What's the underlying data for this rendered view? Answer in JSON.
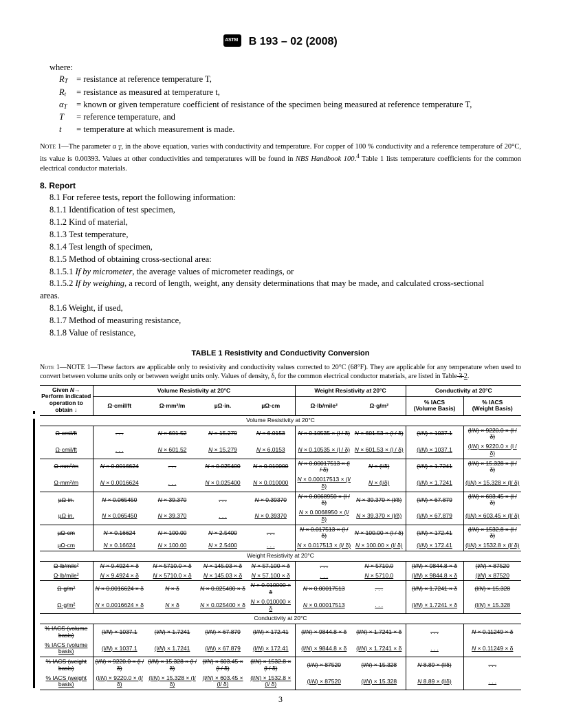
{
  "header": {
    "designation": "B 193 – 02 (2008)"
  },
  "where_label": "where:",
  "defs": [
    {
      "sym": "R",
      "sub": "T",
      "text": "= resistance at reference temperature T,"
    },
    {
      "sym": "R",
      "sub": "t",
      "text": "= resistance as measured at temperature t,"
    },
    {
      "sym": "α",
      "sub": "T",
      "text": "= known or given temperature coefficient of resistance of the specimen being measured at reference temperature T,"
    },
    {
      "sym": "T",
      "sub": "",
      "text": "= reference temperature, and"
    },
    {
      "sym": "t",
      "sub": "",
      "text": "= temperature at which measurement is made."
    }
  ],
  "note1_line1": "NOTE 1—The parameter α",
  "note1_line2": ", in the above equation, varies with conductivity and temperature. For copper of 100 % conductivity and a reference temperature of 20°C, its value is 0.00393. Values at other conductivities and temperatures will be found in ",
  "note1_handbook": "NBS Handbook 100",
  "note1_line3": " Table 1 lists temperature coefficients for the common electrical conductor materials.",
  "sect8": "8. Report",
  "s81": "8.1 For referee tests, report the following information:",
  "s811": "8.1.1 Identification of test specimen,",
  "s812": "8.1.2 Kind of material,",
  "s813": "8.1.3 Test temperature,",
  "s814": "8.1.4 Test length of specimen,",
  "s815": "8.1.5 Method of obtaining cross-sectional area:",
  "s8151": "8.1.5.1 If by micrometer, the average values of micrometer readings, or",
  "s8152a": "8.1.5.2 If by weighing, a record of length, weight, any density determinations that may be made, and calculated cross-sectional",
  "s8152b": "areas.",
  "s816": "8.1.6 Weight, if used,",
  "s817": "8.1.7 Method of measuring resistance,",
  "s818": "8.1.8 Value of resistance,",
  "table_title": "TABLE 1  Resistivity and Conductivity Conversion",
  "tnote_a": "NOTE 1—These factors are applicable only to resistivity and conductivity values corrected to 20°C (68°F). They are applicable for any temperature when used to convert between volume units only or between weight units only. Values of density, δ, for the common electrical conductor materials, are listed in Table",
  "tnote_strike": " 3 ",
  "tnote_new": "2",
  "tnote_end": ".",
  "th_given": "Given N→",
  "th_perform": "Perform indicated operation to obtain ↓",
  "th_volres": "Volume Resistivity at 20°C",
  "th_wtres": "Weight Resistivity at 20°C",
  "th_cond": "Conductivity at 20°C",
  "units": {
    "u1": "Ω·cmil/ft",
    "u2": "Ω·mm²/m",
    "u3": "µΩ·in.",
    "u4": "µΩ·cm",
    "u5": "Ω·lb/mile²",
    "u6": "Ω·g/m²",
    "u7": "% IACS (Volume Basis)",
    "u8": "% IACS (Weight Basis)"
  },
  "sec_vol": "Volume Resistivity at 20°C",
  "sec_wt": "Weight Resistivity at 20°C",
  "sec_cond": "Conductivity at 20°C",
  "r1": [
    "Ω·cmil/ft",
    ". . .",
    "N × 601.52",
    "N × 15.279",
    "N × 6.0153",
    "N × 0.10535 × (l / δ)",
    "N × 601.53 × (l / δ)",
    "(l/N) × 1037.1",
    "(l/N) × 9220.0 × (l / δ)"
  ],
  "r2": [
    "Ω·cmil/ft",
    ". . .",
    "N × 601.52",
    "N × 15.279",
    "N × 6.0153",
    "N × 0.10535 × (l / δ)",
    "N × 601.53 × (l / δ)",
    "(l/N) × 1037.1",
    "(l/N) × 9220.0 × (l / δ)"
  ],
  "r3": [
    "Ω·mm²/m",
    "N × 0.0016624",
    ". . .",
    "N × 0.025400",
    "N × 0.010000",
    "N × 0.00017513 × (l / δ)",
    "N × (l/δ)",
    "(l/N) × 1.7241",
    "(l/N) × 15.328 × (l / δ)"
  ],
  "r4": [
    "Ω·mm²/m",
    "N × 0.0016624",
    ". . .",
    "N × 0.025400",
    "N × 0.010000",
    "N × 0.00017513 × (l/ δ)",
    "N × (l/δ)",
    "(l/N) × 1.7241",
    "(l/N) × 15.328 × (l/ δ)"
  ],
  "r5": [
    "µΩ·in.",
    "N × 0.065450",
    "N × 39.370",
    ". . .",
    "N × 0.39370",
    "N × 0.0068950 × (l / δ)",
    "N × 39.370 × (l/δ)",
    "(l/N) × 67.879",
    "(l/N) × 603.45 × (l / δ)"
  ],
  "r6": [
    "µΩ·in.",
    "N × 0.065450",
    "N × 39.370",
    ". . .",
    "N × 0.39370",
    "N × 0.0068950 × (l/ δ)",
    "N × 39.370 × (l/δ)",
    "(l/N) × 67.879",
    "(l/N) × 603.45 × (l/ δ)"
  ],
  "r7": [
    "µΩ·cm",
    "N × 0.16624",
    "N × 100.00",
    "N × 2.5400",
    ". . .",
    "N × 0.017513 × (l / δ)",
    "N × 100.00 × (l / δ)",
    "(l/N) × 172.41",
    "(l/N) × 1532.8 × (l / δ)"
  ],
  "r8": [
    "µΩ·cm",
    "N × 0.16624",
    "N × 100.00",
    "N × 2.5400",
    ". . .",
    "N × 0.017513 × (l/ δ)",
    "N × 100.00 × (l/ δ)",
    "(l/N) × 172.41",
    "(l/N) × 1532.8 × (l/ δ)"
  ],
  "w1": [
    "Ω·lb/mile²",
    "N × 9.4924 × δ",
    "N × 5710.0 × δ",
    "N × 145.03 × δ",
    "N × 57.100 × δ",
    ". . .",
    "N × 5710.0",
    "(l/N) × 9844.8 × δ",
    "(l/N) × 87520"
  ],
  "w2": [
    "Ω·lb/mile²",
    "N × 9.4924 × δ",
    "N × 5710.0 × δ",
    "N × 145.03 × δ",
    "N × 57.100 × δ",
    ". . .",
    "N × 5710.0",
    "(l/N) × 9844.8 × δ",
    "(l/N) × 87520"
  ],
  "w3": [
    "Ω·g/m²",
    "N × 0.0016624 × δ",
    "N × δ",
    "N × 0.025400 × δ",
    "N × 0.010000 × δ",
    "N × 0.00017513",
    ". . .",
    "(l/N) × 1.7241 × δ",
    "(l/N) × 15.328"
  ],
  "w4": [
    "Ω·g/m²",
    "N × 0.0016624 × δ",
    "N × δ",
    "N × 0.025400 × δ",
    "N × 0.010000 × δ",
    "N × 0.00017513",
    ". . .",
    "(l/N) × 1.7241 × δ",
    "(l/N) × 15.328"
  ],
  "c1": [
    "% IACS (volume basis)",
    "(l/N) × 1037.1",
    "(l/N) × 1.7241",
    "(l/N) × 67.879",
    "(l/N) × 172.41",
    "(l/N) × 9844.8 × δ",
    "(l/N) × 1.7241 × δ",
    ". . .",
    "N × 0.11249 × δ"
  ],
  "c2": [
    "% IACS (volume basis)",
    "(l/N) × 1037.1",
    "(l/N) × 1.7241",
    "(l/N) × 67.879",
    "(l/N) × 172.41",
    "(l/N) × 9844.8 × δ",
    "(l/N) × 1.7241 × δ",
    ". . .",
    "N × 0.11249 × δ"
  ],
  "c3": [
    "% IACS (weight basis)",
    "(l/N) × 9220.0 × (l / δ)",
    "(l/N) × 15.328 × (l / δ)",
    "(l/N) × 603.45 × (l / δ)",
    "(l/N) × 1532.8 × (l / δ)",
    "(l/N) × 87520",
    "(l/N) × 15.328",
    "N 8.89 × (l/δ)",
    ". . ."
  ],
  "c4": [
    "% IACS (weight basis)",
    "(l/N) × 9220.0 × (l/ δ)",
    "(l/N) × 15.328 × (l/ δ)",
    "(l/N) × 603.45 × (l/ δ)",
    "(l/N) × 1532.8 × (l/ δ)",
    "(l/N) × 87520",
    "(l/N) × 15.328",
    "N 8.89 × (l/δ)",
    ". . ."
  ],
  "page_num": "3"
}
